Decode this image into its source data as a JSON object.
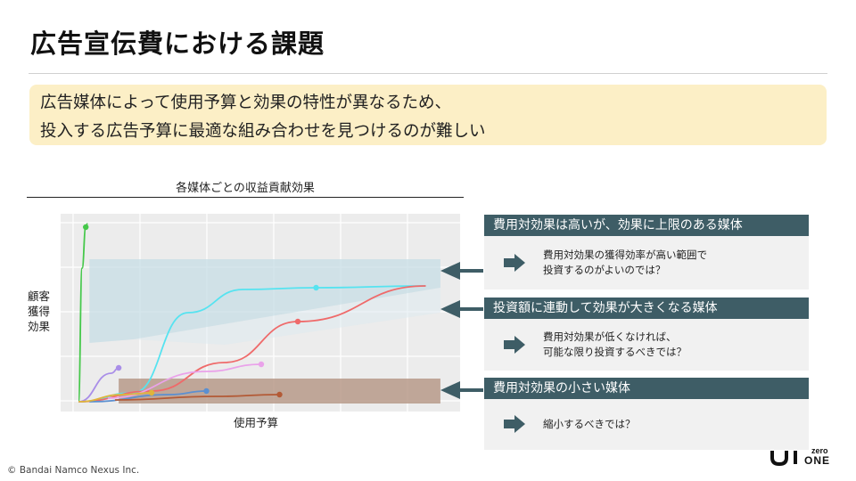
{
  "page_title": "広告宣伝費における課題",
  "callout": {
    "line1": "広告媒体によって使用予算と効果の特性が異なるため、",
    "line2": "投入する広告予算に最適な組み合わせを見つけるのが難しい"
  },
  "chart": {
    "title": "各媒体ごとの収益貢献効果",
    "ylabel": "顧客\n獲得\n効果",
    "xlabel": "使用予算"
  },
  "chart_data": {
    "type": "line",
    "title": "各媒体ごとの収益貢献効果",
    "xlabel": "使用予算",
    "ylabel": "顧客獲得効果",
    "axis_ticks_shown": false,
    "grid": true,
    "series": [
      {
        "color": "#45c84a",
        "x": [
          0,
          0.01,
          0.02,
          0.025
        ],
        "y": [
          0,
          0.75,
          0.98,
          1.0
        ]
      },
      {
        "color": "#56e3f0",
        "x": [
          0,
          0.15,
          0.3,
          0.45,
          0.65,
          0.95
        ],
        "y": [
          0,
          0.05,
          0.5,
          0.63,
          0.64,
          0.65
        ]
      },
      {
        "color": "#ef6a6a",
        "x": [
          0,
          0.2,
          0.4,
          0.6,
          0.95
        ],
        "y": [
          0,
          0.06,
          0.22,
          0.45,
          0.65
        ]
      },
      {
        "color": "#eaa2ea",
        "x": [
          0.08,
          0.35,
          0.5
        ],
        "y": [
          0.02,
          0.17,
          0.21
        ]
      },
      {
        "color": "#a98ee8",
        "x": [
          0,
          0.09,
          0.11
        ],
        "y": [
          0,
          0.16,
          0.19
        ]
      },
      {
        "color": "#5b8fd0",
        "x": [
          0.03,
          0.25,
          0.35
        ],
        "y": [
          0,
          0.04,
          0.06
        ]
      },
      {
        "color": "#b35a36",
        "x": [
          0.1,
          0.38,
          0.55
        ],
        "y": [
          0.01,
          0.03,
          0.04
        ]
      },
      {
        "color": "#e0b43a",
        "x": [
          0,
          0.12,
          0.2
        ],
        "y": [
          0,
          0.04,
          0.05
        ]
      }
    ],
    "highlight_regions": [
      {
        "label": "費用対効果は高いが、効果に上限のある媒体",
        "color": "#c7dde5"
      },
      {
        "label": "投資額に連動して効果が大きくなる媒体",
        "color": "#dceaf0"
      },
      {
        "label": "費用対効果の小さい媒体",
        "color": "#b29280"
      }
    ]
  },
  "panels": [
    {
      "heading": "費用対効果は高いが、効果に上限のある媒体",
      "line1": "費用対効果の獲得効率が高い範囲で",
      "line2": "投資するのがよいのでは？"
    },
    {
      "heading": "投資額に連動して効果が大きくなる媒体",
      "line1": "費用対効果が低くなければ、",
      "line2": "可能な限り投資するべきでは？"
    },
    {
      "heading": "費用対効果の小さい媒体",
      "line1": "縮小するべきでは？",
      "line2": ""
    }
  ],
  "colors": {
    "panel_header": "#3e5d66",
    "callout_bg": "#fcefc6",
    "pointer_arrow": "#3e5d66"
  },
  "copyright": "© Bandai Namco Nexus Inc.",
  "logo": {
    "text_zero": "zero",
    "text_one": "ONE"
  }
}
